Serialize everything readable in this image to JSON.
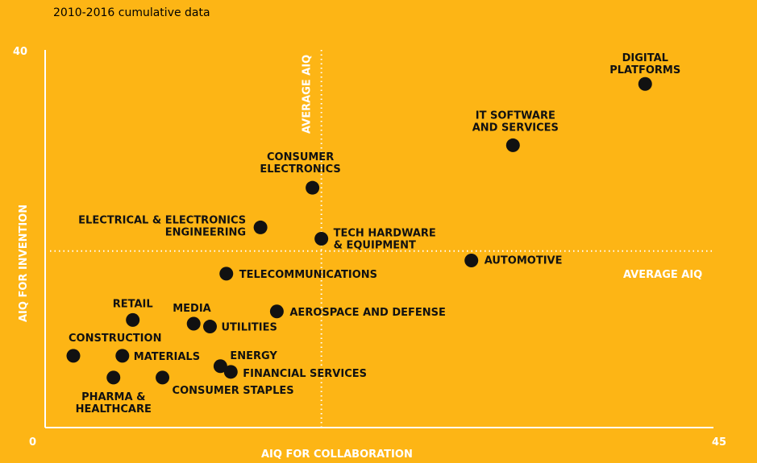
{
  "chart_data": {
    "type": "scatter",
    "subtitle": "2010-2016 cumulative data",
    "xlabel": "AIQ FOR COLLABORATION",
    "ylabel": "AIQ FOR INVENTION",
    "x_min_label": "0",
    "x_max_label": "45",
    "y_max_label": "40",
    "xlim": [
      0,
      45
    ],
    "ylim": [
      0,
      40
    ],
    "grid": false,
    "reference_lines": {
      "vertical_label": "AVERAGE AIQ",
      "horizontal_label": "AVERAGE AIQ",
      "x_value": 18.6,
      "y_value": 18.7
    },
    "colors": {
      "background": "#fdb515",
      "points": "#111111",
      "axis_text": "#ffffff"
    },
    "points": [
      {
        "name": "DIGITAL PLATFORMS",
        "lines": [
          "DIGITAL",
          "PLATFORMS"
        ],
        "x": 40.4,
        "y": 36.4
      },
      {
        "name": "IT SOFTWARE AND SERVICES",
        "lines": [
          "IT SOFTWARE",
          "AND SERVICES"
        ],
        "x": 31.5,
        "y": 29.9
      },
      {
        "name": "CONSUMER ELECTRONICS",
        "lines": [
          "CONSUMER",
          "ELECTRONICS"
        ],
        "x": 18.0,
        "y": 25.4
      },
      {
        "name": "ELECTRICAL & ELECTRONICS ENGINEERING",
        "lines": [
          "ELECTRICAL & ELECTRONICS",
          "ENGINEERING"
        ],
        "x": 14.5,
        "y": 21.2
      },
      {
        "name": "TECH HARDWARE & EQUIPMENT",
        "lines": [
          "TECH HARDWARE",
          "& EQUIPMENT"
        ],
        "x": 18.6,
        "y": 20.0
      },
      {
        "name": "AUTOMOTIVE",
        "lines": [
          "AUTOMOTIVE"
        ],
        "x": 28.7,
        "y": 17.7
      },
      {
        "name": "TELECOMMUNICATIONS",
        "lines": [
          "TELECOMMUNICATIONS"
        ],
        "x": 12.2,
        "y": 16.3
      },
      {
        "name": "AEROSPACE AND DEFENSE",
        "lines": [
          "AEROSPACE AND DEFENSE"
        ],
        "x": 15.6,
        "y": 12.3
      },
      {
        "name": "RETAIL",
        "lines": [
          "RETAIL"
        ],
        "x": 5.9,
        "y": 11.4
      },
      {
        "name": "MEDIA",
        "lines": [
          "MEDIA"
        ],
        "x": 10.0,
        "y": 11.0
      },
      {
        "name": "UTILITIES",
        "lines": [
          "UTILITIES"
        ],
        "x": 11.1,
        "y": 10.7
      },
      {
        "name": "CONSTRUCTION",
        "lines": [
          "CONSTRUCTION"
        ],
        "x": 1.9,
        "y": 7.6
      },
      {
        "name": "MATERIALS",
        "lines": [
          "MATERIALS"
        ],
        "x": 5.2,
        "y": 7.6
      },
      {
        "name": "ENERGY",
        "lines": [
          "ENERGY"
        ],
        "x": 11.8,
        "y": 6.5
      },
      {
        "name": "FINANCIAL SERVICES",
        "lines": [
          "FINANCIAL SERVICES"
        ],
        "x": 12.5,
        "y": 5.9
      },
      {
        "name": "PHARMA & HEALTHCARE",
        "lines": [
          "PHARMA &",
          "HEALTHCARE"
        ],
        "x": 4.6,
        "y": 5.3
      },
      {
        "name": "CONSUMER STAPLES",
        "lines": [
          "CONSUMER STAPLES"
        ],
        "x": 7.9,
        "y": 5.3
      }
    ]
  }
}
